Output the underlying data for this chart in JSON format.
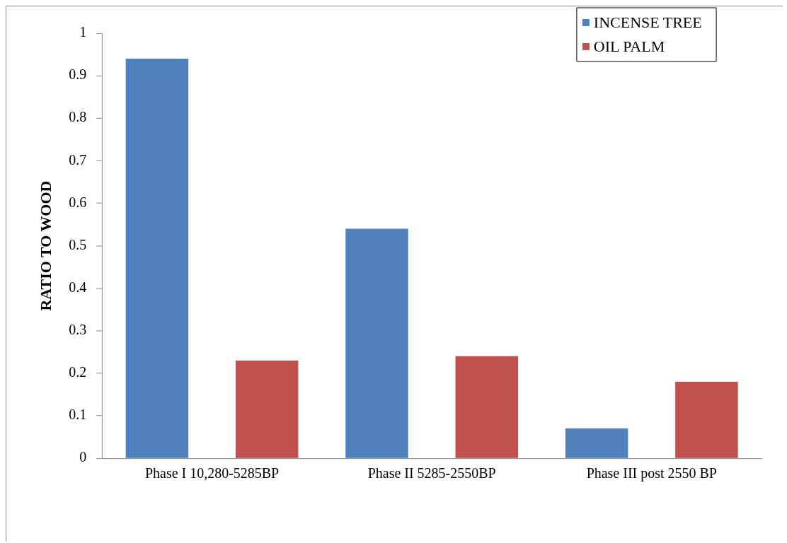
{
  "chart_data": {
    "type": "bar",
    "ylabel": "RATIO TO WOOD",
    "categories": [
      "Phase I 10,280-5285BP",
      "Phase II 5285-2550BP",
      "Phase III post 2550 BP"
    ],
    "series": [
      {
        "name": "INCENSE TREE",
        "color": "#4f81bd",
        "values": [
          0.94,
          0.54,
          0.07
        ]
      },
      {
        "name": "OIL PALM",
        "color": "#c0504d",
        "values": [
          0.23,
          0.24,
          0.18
        ]
      }
    ],
    "ylim": [
      0,
      1
    ],
    "yticks": [
      0,
      0.1,
      0.2,
      0.3,
      0.4,
      0.5,
      0.6,
      0.7,
      0.8,
      0.9,
      1
    ],
    "grid": false,
    "legend": "top right"
  }
}
